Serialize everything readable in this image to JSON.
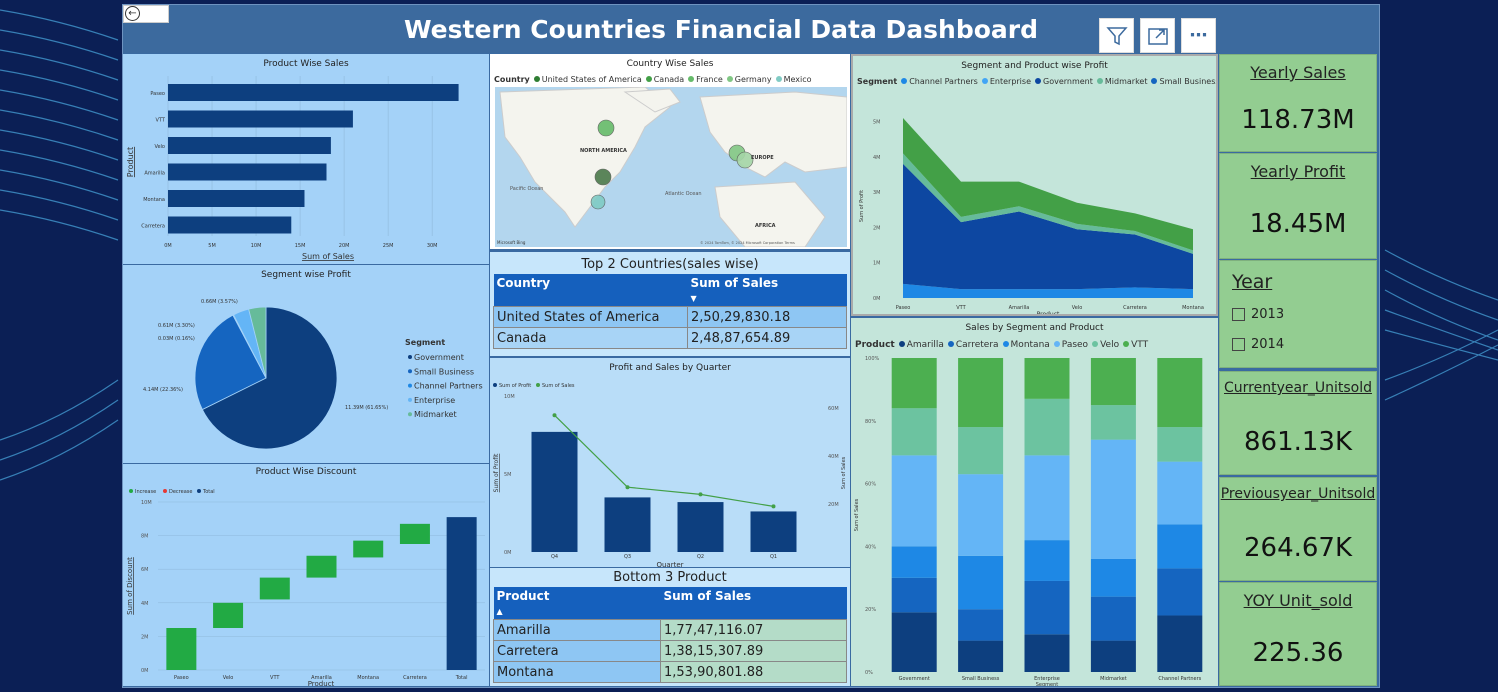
{
  "header": {
    "title": "Western Countries Financial Data  Dashboard"
  },
  "toolbar": {
    "filter_icon": "filter-icon",
    "focus_icon": "focus-mode-icon",
    "more_icon": "more-options-icon",
    "back_icon": "back-arrow-icon"
  },
  "product_sales": {
    "title": "Product Wise Sales",
    "ylabel": "Product",
    "xlabel": "Sum of Sales",
    "categories": [
      "Paseo",
      "VTT",
      "Velo",
      "Amarilla",
      "Montana",
      "Carretera"
    ],
    "values": [
      33,
      21,
      18.5,
      18,
      15.5,
      14
    ],
    "ticks": [
      "0M",
      "5M",
      "10M",
      "15M",
      "20M",
      "25M",
      "30M"
    ],
    "tick_values": [
      0,
      5,
      10,
      15,
      20,
      25,
      30
    ],
    "xmax": 36
  },
  "country_sales": {
    "title": "Country Wise Sales",
    "legend_title": "Country",
    "legend": [
      {
        "name": "United States of America",
        "color": "#2e7d32"
      },
      {
        "name": "Canada",
        "color": "#43a047"
      },
      {
        "name": "France",
        "color": "#66bb6a"
      },
      {
        "name": "Germany",
        "color": "#81c784"
      },
      {
        "name": "Mexico",
        "color": "#80cbc4"
      }
    ],
    "map_labels": {
      "na": "NORTH AMERICA",
      "eu": "EUROPE",
      "af": "AFRICA",
      "pac": "Pacific\nOcean",
      "atl": "Atlantic\nOcean"
    },
    "attribution": "© 2024 TomTom, © 2024 Microsoft Corporation  Terms",
    "brand": "Microsoft Bing"
  },
  "segment_profit_area": {
    "title": "Segment and Product wise Profit",
    "legend_title": "Segment",
    "legend": [
      {
        "name": "Channel Partners",
        "color": "#1e88e5"
      },
      {
        "name": "Enterprise",
        "color": "#42a5f5"
      },
      {
        "name": "Government",
        "color": "#0d47a1"
      },
      {
        "name": "Midmarket",
        "color": "#66bb9a"
      },
      {
        "name": "Small Business",
        "color": "#1565c0"
      }
    ],
    "ylabel": "Sum of Profit",
    "xlabel": "Product",
    "categories": [
      "Paseo",
      "VTT",
      "Amarilla",
      "Velo",
      "Carretera",
      "Montana"
    ],
    "yticks": [
      "0M",
      "1M",
      "2M",
      "3M",
      "4M",
      "5M"
    ],
    "government": [
      3.4,
      1.9,
      2.2,
      1.7,
      1.5,
      1.0
    ],
    "small_business": [
      0.4,
      0.25,
      0.25,
      0.25,
      0.3,
      0.25
    ],
    "midmarket": [
      0.3,
      0.15,
      0.15,
      0.15,
      0.1,
      0.1
    ],
    "other": [
      1.0,
      1.0,
      0.7,
      0.6,
      0.5,
      0.6
    ]
  },
  "segment_pie": {
    "title": "Segment wise Profit",
    "legend_title": "Segment",
    "legend": [
      {
        "name": "Government",
        "color": "#0d3f7f"
      },
      {
        "name": "Small Business",
        "color": "#1565c0"
      },
      {
        "name": "Channel Partners",
        "color": "#1e88e5"
      },
      {
        "name": "Enterprise",
        "color": "#64b5f6"
      },
      {
        "name": "Midmarket",
        "color": "#66bb9a"
      }
    ],
    "values": [
      11.39,
      4.14,
      0.03,
      0.61,
      0.66
    ],
    "labels": [
      "11.39M (61.65%)",
      "4.14M (22.36%)",
      "0.03M (0.16%)",
      "0.61M (3.30%)",
      "0.66M (3.57%)"
    ]
  },
  "top_countries": {
    "title": "Top 2 Countries(sales wise)",
    "columns": [
      "Country",
      "Sum of Sales"
    ],
    "rows": [
      [
        "United States of America",
        "2,50,29,830.18"
      ],
      [
        "Canada",
        "2,48,87,654.89"
      ]
    ]
  },
  "profit_sales_quarter": {
    "title": "Profit and Sales by Quarter",
    "legend": [
      {
        "name": "Sum of Profit",
        "color": "#0d3f7f"
      },
      {
        "name": "Sum of Sales",
        "color": "#43a047"
      }
    ],
    "categories": [
      "Q4",
      "Q3",
      "Q2",
      "Q1"
    ],
    "profit": [
      7.7,
      3.5,
      3.2,
      2.6
    ],
    "sales": [
      57,
      27,
      24,
      19
    ],
    "ylabel_left": "Sum of Profit",
    "ylabel_right": "Sum of Sales",
    "xlabel": "Quarter",
    "left_ticks": [
      "0M",
      "5M",
      "10M"
    ],
    "right_ticks": [
      "20M",
      "40M",
      "60M"
    ]
  },
  "sales_segment_product": {
    "title": "Sales by Segment and Product",
    "legend_title": "Product",
    "legend": [
      {
        "name": "Amarilla",
        "color": "#0d3f7f"
      },
      {
        "name": "Carretera",
        "color": "#1565c0"
      },
      {
        "name": "Montana",
        "color": "#1e88e5"
      },
      {
        "name": "Paseo",
        "color": "#64b5f6"
      },
      {
        "name": "Velo",
        "color": "#6cc3a0"
      },
      {
        "name": "VTT",
        "color": "#4caf50"
      }
    ],
    "ylabel": "Sum of Sales",
    "xlabel": "Segment",
    "yticks": [
      "0%",
      "20%",
      "40%",
      "60%",
      "80%",
      "100%"
    ],
    "categories": [
      "Government",
      "Small Business",
      "Enterprise",
      "Midmarket",
      "Channel Partners"
    ],
    "stacks": [
      [
        19,
        10,
        12,
        10,
        18
      ],
      [
        11,
        10,
        17,
        14,
        15
      ],
      [
        10,
        17,
        13,
        12,
        14
      ],
      [
        29,
        26,
        27,
        38,
        20
      ],
      [
        15,
        15,
        18,
        11,
        11
      ],
      [
        16,
        22,
        13,
        15,
        22
      ]
    ]
  },
  "product_discount": {
    "title": "Product Wise Discount",
    "legend": [
      {
        "name": "Increase",
        "color": "#22aa44"
      },
      {
        "name": "Decrease",
        "color": "#e53935"
      },
      {
        "name": "Total",
        "color": "#0d3f7f"
      }
    ],
    "ylabel": "Sum of Discount",
    "xlabel": "Product",
    "categories": [
      "Paseo",
      "Velo",
      "VTT",
      "Amarilla",
      "Montana",
      "Carretera",
      "Total"
    ],
    "start": [
      0,
      2.5,
      4.2,
      5.5,
      6.7,
      7.5,
      0
    ],
    "end": [
      2.5,
      4.0,
      5.5,
      6.8,
      7.7,
      8.7,
      9.1
    ],
    "yticks": [
      "0M",
      "2M",
      "4M",
      "6M",
      "8M",
      "10M"
    ]
  },
  "bottom_products": {
    "title": "Bottom 3 Product",
    "columns": [
      "Product",
      "Sum of Sales"
    ],
    "rows": [
      [
        "Amarilla",
        "1,77,47,116.07"
      ],
      [
        "Carretera",
        "1,38,15,307.89"
      ],
      [
        "Montana",
        "1,53,90,801.88"
      ]
    ]
  },
  "kpis": [
    {
      "title": "Yearly Sales",
      "value": "118.73M"
    },
    {
      "title": "Yearly Profit",
      "value": "18.45M"
    },
    {
      "title": "Currentyear_Unitsold",
      "value": "861.13K"
    },
    {
      "title": "Previousyear_Unitsold",
      "value": "264.67K"
    },
    {
      "title": "YOY Unit_sold",
      "value": "225.36"
    }
  ],
  "year_slicer": {
    "title": "Year",
    "options": [
      "2013",
      "2014"
    ]
  }
}
